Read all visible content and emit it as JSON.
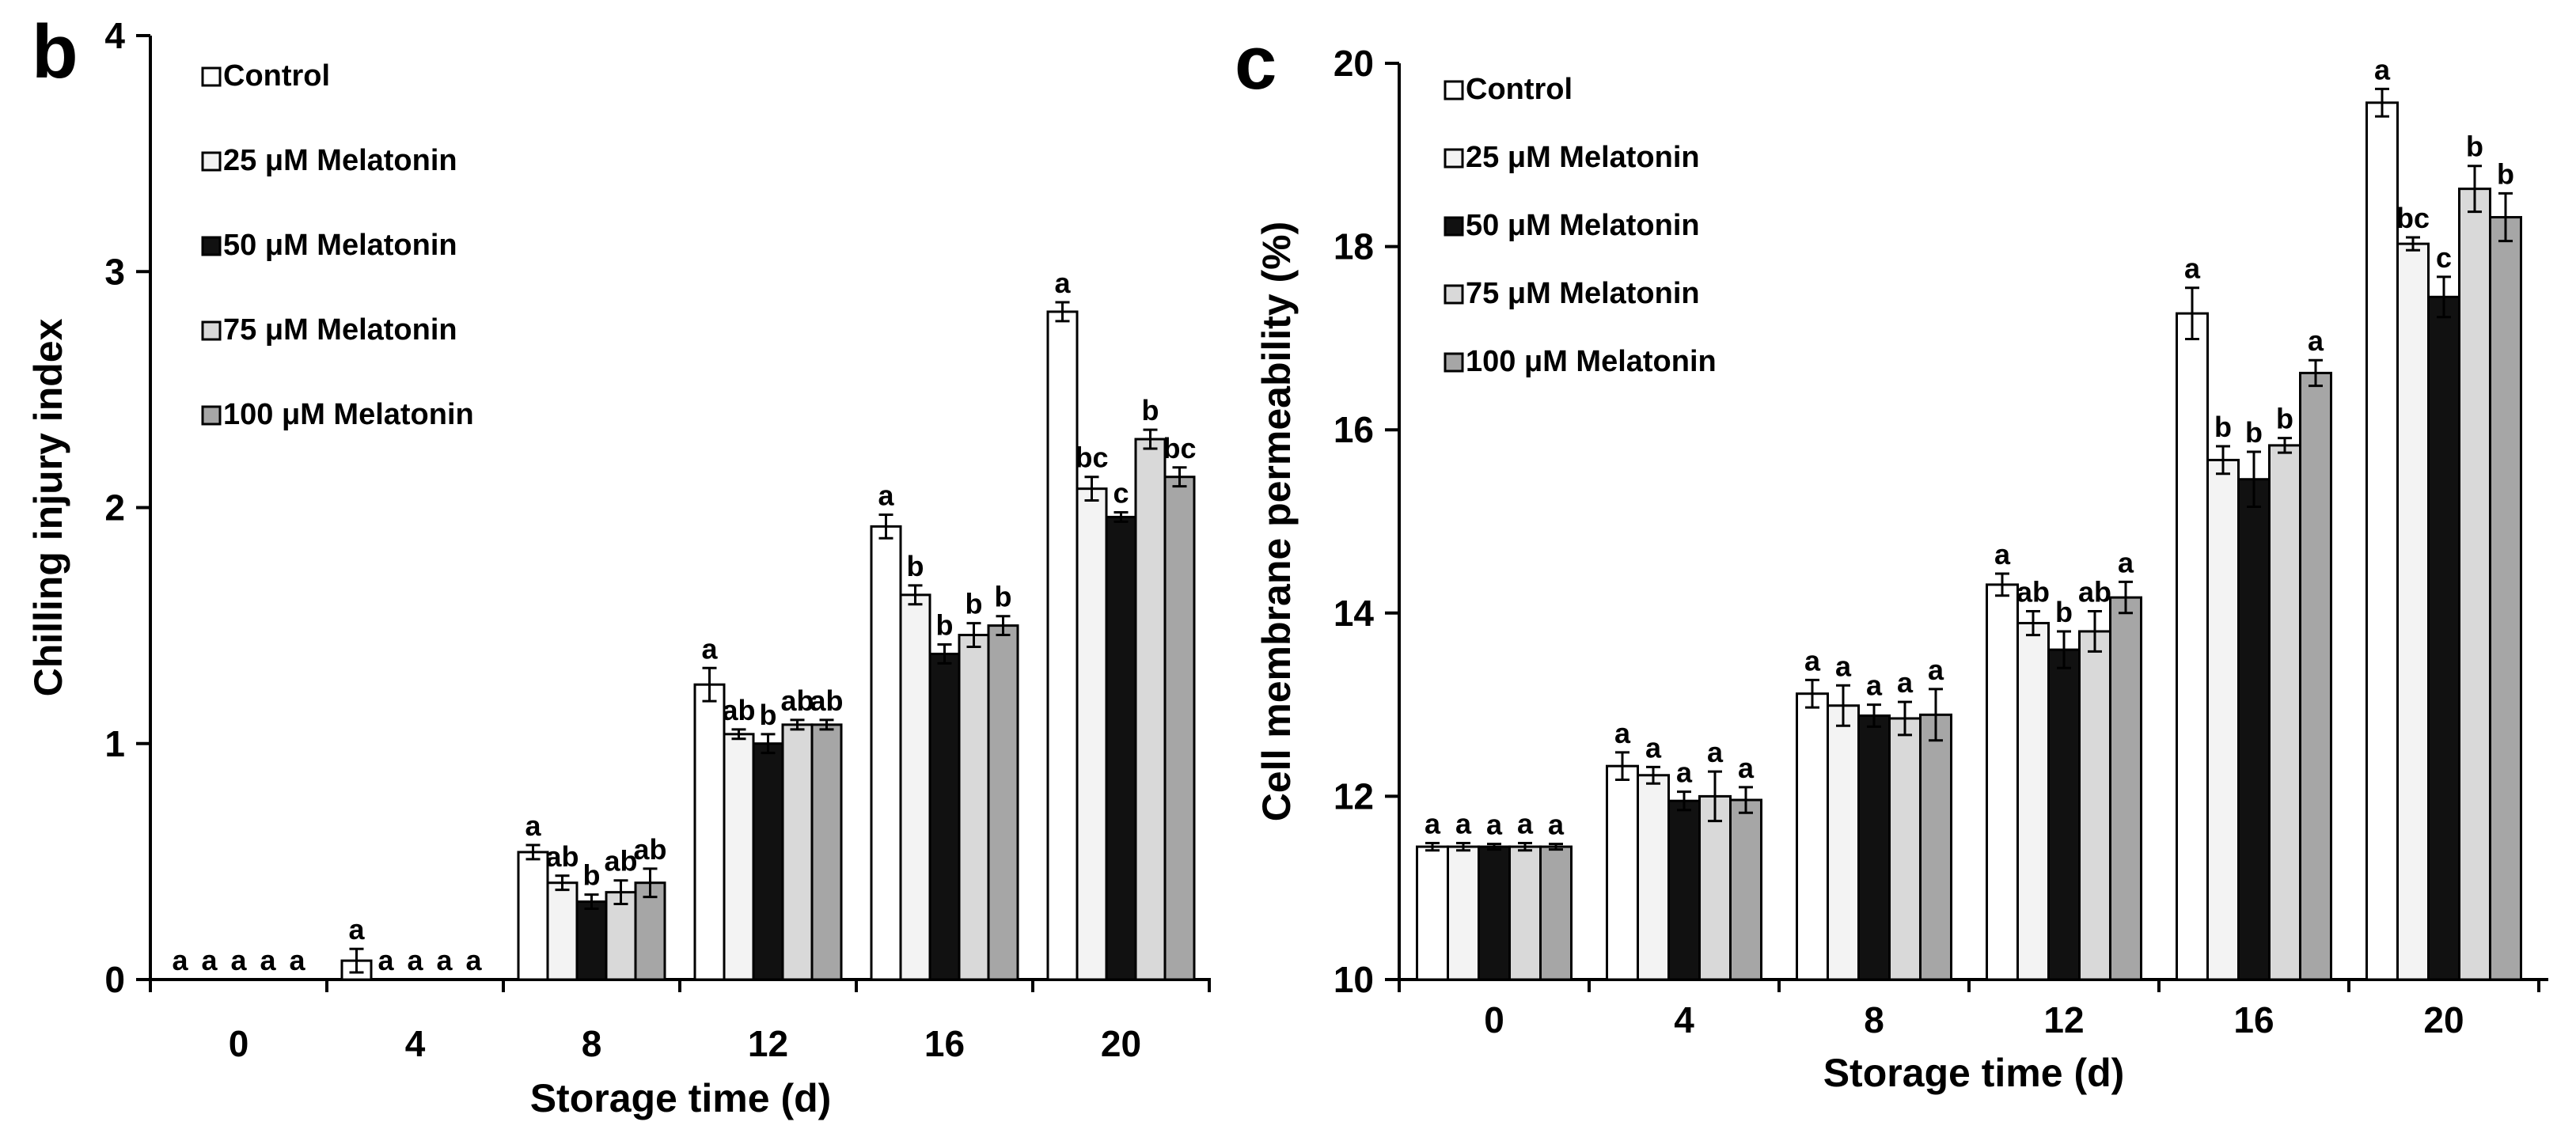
{
  "chart_data": [
    {
      "type": "bar",
      "panel": "b",
      "title": "",
      "xlabel": "Storage time (d)",
      "ylabel": "Chilling injury index",
      "categories": [
        "0",
        "4",
        "8",
        "12",
        "16",
        "20"
      ],
      "ylim": [
        0,
        4
      ],
      "yticks": [
        "0",
        "1",
        "2",
        "3",
        "4"
      ],
      "legend_position": "top-left",
      "series": [
        {
          "name": "Control",
          "color": "#ffffff",
          "values": [
            0,
            0.08,
            0.54,
            1.25,
            1.92,
            2.83
          ],
          "errors": [
            0,
            0.05,
            0.03,
            0.07,
            0.05,
            0.04
          ],
          "letters": [
            "a",
            "a",
            "a",
            "a",
            "a",
            "a"
          ]
        },
        {
          "name": "25 μM Melatonin",
          "color": "#f3f3f3",
          "values": [
            0,
            0,
            0.41,
            1.04,
            1.63,
            2.08
          ],
          "errors": [
            0,
            0,
            0.03,
            0.02,
            0.04,
            0.05
          ],
          "letters": [
            "a",
            "a",
            "ab",
            "ab",
            "b",
            "bc"
          ]
        },
        {
          "name": "50 μM Melatonin",
          "color": "#111111",
          "values": [
            0,
            0,
            0.33,
            1.0,
            1.38,
            1.96
          ],
          "errors": [
            0,
            0,
            0.03,
            0.04,
            0.04,
            0.02
          ],
          "letters": [
            "a",
            "a",
            "b",
            "b",
            "b",
            "c"
          ]
        },
        {
          "name": "75 μM Melatonin",
          "color": "#d9d9d9",
          "values": [
            0,
            0,
            0.37,
            1.08,
            1.46,
            2.29
          ],
          "errors": [
            0,
            0,
            0.05,
            0.02,
            0.05,
            0.04
          ],
          "letters": [
            "a",
            "a",
            "ab",
            "ab",
            "b",
            "b"
          ]
        },
        {
          "name": "100 μM Melatonin",
          "color": "#a6a6a6",
          "values": [
            0,
            0,
            0.41,
            1.08,
            1.5,
            2.13
          ],
          "errors": [
            0,
            0,
            0.06,
            0.02,
            0.04,
            0.04
          ],
          "letters": [
            "a",
            "a",
            "ab",
            "ab",
            "b",
            "bc"
          ]
        }
      ]
    },
    {
      "type": "bar",
      "panel": "c",
      "title": "",
      "xlabel": "Storage time (d)",
      "ylabel": "Cell membrane permeability (%)",
      "categories": [
        "0",
        "4",
        "8",
        "12",
        "16",
        "20"
      ],
      "ylim": [
        10,
        20
      ],
      "yticks": [
        "10",
        "12",
        "14",
        "16",
        "18",
        "20"
      ],
      "legend_position": "top-left",
      "series": [
        {
          "name": "Control",
          "color": "#ffffff",
          "values": [
            11.45,
            12.33,
            13.12,
            14.31,
            17.27,
            19.57
          ],
          "errors": [
            0.04,
            0.15,
            0.15,
            0.12,
            0.28,
            0.15
          ],
          "letters": [
            "a",
            "a",
            "a",
            "a",
            "a",
            "a"
          ]
        },
        {
          "name": "25 μM Melatonin",
          "color": "#f3f3f3",
          "values": [
            11.45,
            12.23,
            12.99,
            13.89,
            15.67,
            18.03
          ],
          "errors": [
            0.04,
            0.09,
            0.22,
            0.13,
            0.15,
            0.07
          ],
          "letters": [
            "a",
            "a",
            "a",
            "ab",
            "b",
            "bc"
          ]
        },
        {
          "name": "50 μM Melatonin",
          "color": "#111111",
          "values": [
            11.45,
            11.95,
            12.88,
            13.6,
            15.46,
            17.45
          ],
          "errors": [
            0.03,
            0.1,
            0.12,
            0.2,
            0.3,
            0.22
          ],
          "letters": [
            "a",
            "a",
            "a",
            "b",
            "b",
            "c"
          ]
        },
        {
          "name": "75 μM Melatonin",
          "color": "#d9d9d9",
          "values": [
            11.45,
            12.0,
            12.85,
            13.8,
            15.83,
            18.63
          ],
          "errors": [
            0.04,
            0.27,
            0.18,
            0.22,
            0.08,
            0.25
          ],
          "letters": [
            "a",
            "a",
            "a",
            "ab",
            "b",
            "b"
          ]
        },
        {
          "name": "100 μM Melatonin",
          "color": "#a6a6a6",
          "values": [
            11.45,
            11.96,
            12.89,
            14.17,
            16.62,
            18.32
          ],
          "errors": [
            0.03,
            0.14,
            0.28,
            0.17,
            0.14,
            0.26
          ],
          "letters": [
            "a",
            "a",
            "a",
            "a",
            "a",
            "b"
          ]
        }
      ]
    }
  ]
}
